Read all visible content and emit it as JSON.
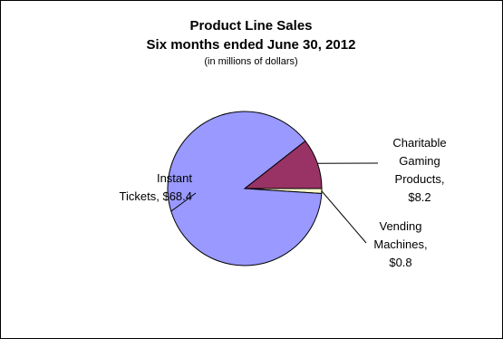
{
  "chart_data": {
    "type": "pie",
    "title_line1": "Product Line Sales",
    "title_line2": "Six months ended June 30, 2012",
    "subtitle": "(in millions of dollars)",
    "slices": [
      {
        "label_lines": [
          "Instant",
          "Tickets,  $68.4"
        ],
        "value": 68.4,
        "color": "#9999ff"
      },
      {
        "label_lines": [
          "Charitable",
          "Gaming",
          "Products,",
          "$8.2"
        ],
        "value": 8.2,
        "color": "#993366"
      },
      {
        "label_lines": [
          "Vending",
          "Machines,",
          "$0.8"
        ],
        "value": 0.8,
        "color": "#ffffcc"
      }
    ]
  }
}
